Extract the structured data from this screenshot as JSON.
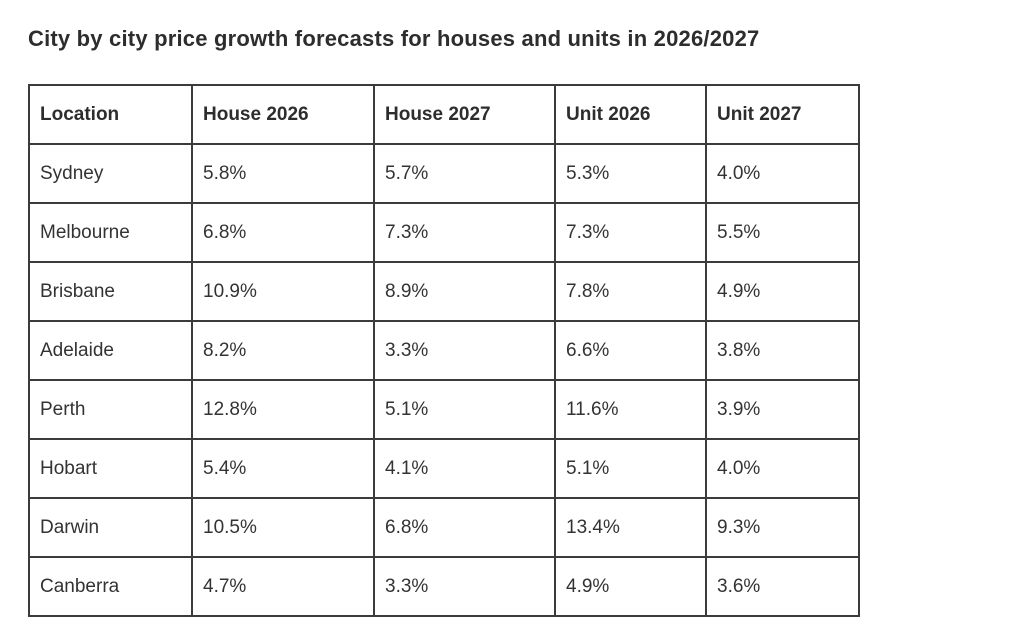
{
  "page": {
    "title": "City by city price growth forecasts for houses and units in 2026/2027"
  },
  "table": {
    "columns": [
      "Location",
      "House 2026",
      "House 2027",
      "Unit 2026",
      "Unit 2027"
    ],
    "rows": [
      {
        "cells": [
          "Sydney",
          "5.8%",
          "5.7%",
          "5.3%",
          "4.0%"
        ]
      },
      {
        "cells": [
          "Melbourne",
          "6.8%",
          "7.3%",
          "7.3%",
          "5.5%"
        ]
      },
      {
        "cells": [
          "Brisbane",
          "10.9%",
          "8.9%",
          "7.8%",
          "4.9%"
        ]
      },
      {
        "cells": [
          "Adelaide",
          "8.2%",
          "3.3%",
          "6.6%",
          "3.8%"
        ]
      },
      {
        "cells": [
          "Perth",
          "12.8%",
          "5.1%",
          "11.6%",
          "3.9%"
        ]
      },
      {
        "cells": [
          "Hobart",
          "5.4%",
          "4.1%",
          "5.1%",
          "4.0%"
        ]
      },
      {
        "cells": [
          "Darwin",
          "10.5%",
          "6.8%",
          "13.4%",
          "9.3%"
        ]
      },
      {
        "cells": [
          "Canberra",
          "4.7%",
          "3.3%",
          "4.9%",
          "3.6%"
        ]
      }
    ]
  },
  "colors": {
    "title_text": "#2d2d2d",
    "cell_text": "#333333",
    "border": "#3b3b3b",
    "background": "#ffffff"
  },
  "chart_data": {
    "type": "table",
    "title": "City by city price growth forecasts for houses and units in 2026/2027",
    "columns": [
      "Location",
      "House 2026",
      "House 2027",
      "Unit 2026",
      "Unit 2027"
    ],
    "rows": [
      [
        "Sydney",
        5.8,
        5.7,
        5.3,
        4.0
      ],
      [
        "Melbourne",
        6.8,
        7.3,
        7.3,
        5.5
      ],
      [
        "Brisbane",
        10.9,
        8.9,
        7.8,
        4.9
      ],
      [
        "Adelaide",
        8.2,
        3.3,
        6.6,
        3.8
      ],
      [
        "Perth",
        12.8,
        5.1,
        11.6,
        3.9
      ],
      [
        "Hobart",
        5.4,
        4.1,
        5.1,
        4.0
      ],
      [
        "Darwin",
        10.5,
        6.8,
        13.4,
        9.3
      ],
      [
        "Canberra",
        4.7,
        3.3,
        4.9,
        3.6
      ]
    ],
    "units": "percent",
    "legend_position": "none",
    "grid": true
  }
}
